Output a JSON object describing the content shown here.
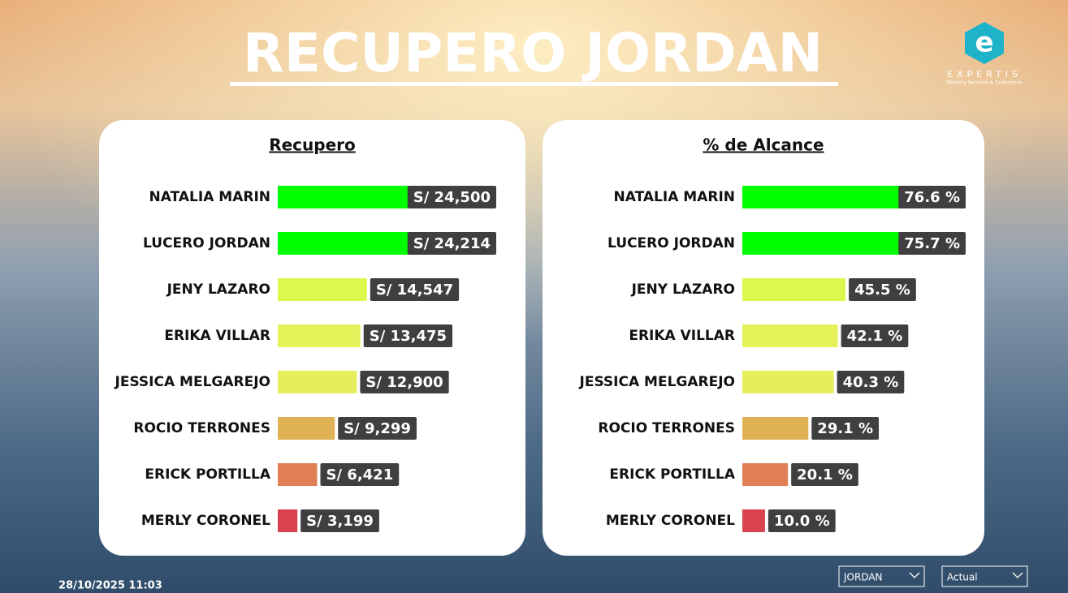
{
  "header": {
    "title": "RECUPERO JORDAN",
    "logo_brand": "EXPERTIS",
    "logo_tagline": "Mastery Services & Collections"
  },
  "chart_data": [
    {
      "type": "bar",
      "orientation": "horizontal",
      "title": "Recupero",
      "categories": [
        "NATALIA MARIN",
        "LUCERO JORDAN",
        "JENY LAZARO",
        "ERIKA VILLAR",
        "JESSICA MELGAREJO",
        "ROCIO TERRONES",
        "ERICK PORTILLA",
        "MERLY CORONEL"
      ],
      "values": [
        24500,
        24214,
        14547,
        13475,
        12900,
        9299,
        6421,
        3199
      ],
      "value_labels": [
        "S/ 24,500",
        "S/ 24,214",
        "S/ 14,547",
        "S/ 13,475",
        "S/ 12,900",
        "S/ 9,299",
        "S/ 6,421",
        "S/ 3,199"
      ],
      "colors": [
        "#00ff00",
        "#00ff00",
        "#dcf84c",
        "#e4f25a",
        "#e6ee5c",
        "#e0b155",
        "#e07f55",
        "#d9434f"
      ]
    },
    {
      "type": "bar",
      "orientation": "horizontal",
      "title": "% de Alcance",
      "categories": [
        "NATALIA MARIN",
        "LUCERO JORDAN",
        "JENY LAZARO",
        "ERIKA VILLAR",
        "JESSICA MELGAREJO",
        "ROCIO TERRONES",
        "ERICK PORTILLA",
        "MERLY CORONEL"
      ],
      "values": [
        76.6,
        75.7,
        45.5,
        42.1,
        40.3,
        29.1,
        20.1,
        10.0
      ],
      "value_labels": [
        "76.6 %",
        "75.7 %",
        "45.5 %",
        "42.1 %",
        "40.3 %",
        "29.1 %",
        "20.1 %",
        "10.0 %"
      ],
      "colors": [
        "#00ff00",
        "#00ff00",
        "#dcf84c",
        "#e4f25a",
        "#e6ee5c",
        "#e0b155",
        "#e07f55",
        "#d9434f"
      ]
    }
  ],
  "timestamp": "28/10/2025 11:03",
  "filters": [
    {
      "label": "JORDAN"
    },
    {
      "label": "Actual"
    }
  ]
}
